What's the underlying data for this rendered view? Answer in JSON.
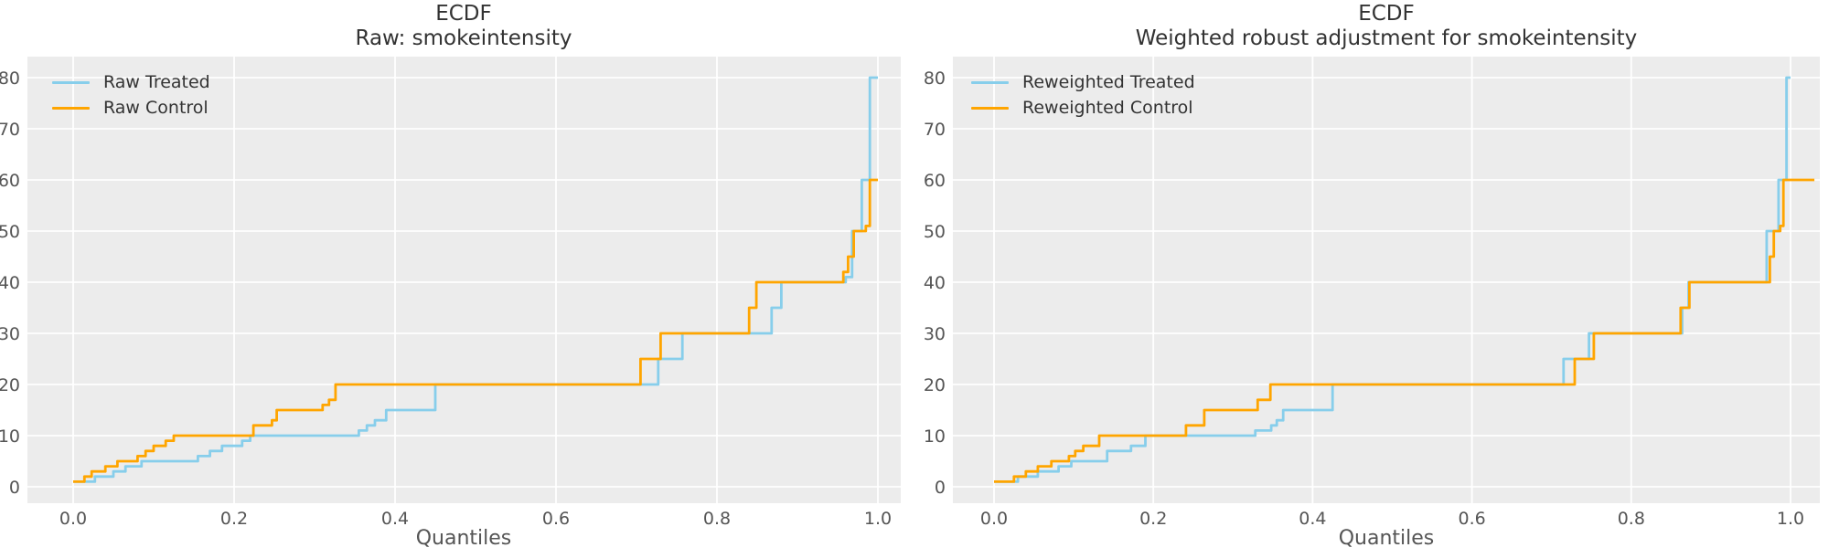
{
  "colors": {
    "treated": "#87CEEB",
    "control": "#FFA500",
    "panel_bg": "#ECECEC",
    "grid": "#FFFFFF",
    "tick_text": "#555555",
    "title_text": "#333333"
  },
  "chart_data": [
    {
      "type": "line",
      "subtype": "step-quantile-ecdf",
      "title_lines": [
        "ECDF",
        "Raw: smokeintensity"
      ],
      "xlabel": "Quantiles",
      "ylabel": "",
      "grid": true,
      "legend_position": "upper left",
      "xlim": [
        -0.057,
        1.028
      ],
      "ylim": [
        -3.2,
        84.1
      ],
      "x_ticks": [
        0.0,
        0.2,
        0.4,
        0.6,
        0.8,
        1.0
      ],
      "x_tick_labels": [
        "0.0",
        "0.2",
        "0.4",
        "0.6",
        "0.8",
        "1.0"
      ],
      "y_ticks": [
        0,
        10,
        20,
        30,
        40,
        50,
        60,
        70,
        80
      ],
      "y_tick_labels": [
        "0",
        "10",
        "20",
        "30",
        "40",
        "50",
        "60",
        "70",
        "80"
      ],
      "series": [
        {
          "name": "Raw Treated",
          "color_key": "treated",
          "points": [
            [
              0.0,
              1
            ],
            [
              0.027,
              2
            ],
            [
              0.05,
              3
            ],
            [
              0.065,
              4
            ],
            [
              0.085,
              5
            ],
            [
              0.155,
              6
            ],
            [
              0.17,
              7
            ],
            [
              0.185,
              8
            ],
            [
              0.21,
              9
            ],
            [
              0.22,
              10
            ],
            [
              0.355,
              11
            ],
            [
              0.365,
              12
            ],
            [
              0.375,
              13
            ],
            [
              0.389,
              15
            ],
            [
              0.45,
              20
            ],
            [
              0.727,
              25
            ],
            [
              0.757,
              30
            ],
            [
              0.868,
              35
            ],
            [
              0.88,
              40
            ],
            [
              0.96,
              41
            ],
            [
              0.968,
              50
            ],
            [
              0.98,
              60
            ],
            [
              0.99,
              80
            ],
            [
              1.0,
              80
            ]
          ]
        },
        {
          "name": "Raw Control",
          "color_key": "control",
          "points": [
            [
              0.0,
              1
            ],
            [
              0.014,
              2
            ],
            [
              0.023,
              3
            ],
            [
              0.04,
              4
            ],
            [
              0.055,
              5
            ],
            [
              0.08,
              6
            ],
            [
              0.09,
              7
            ],
            [
              0.1,
              8
            ],
            [
              0.115,
              9
            ],
            [
              0.125,
              10
            ],
            [
              0.224,
              12
            ],
            [
              0.247,
              13
            ],
            [
              0.253,
              15
            ],
            [
              0.31,
              16
            ],
            [
              0.318,
              17
            ],
            [
              0.326,
              20
            ],
            [
              0.705,
              25
            ],
            [
              0.73,
              30
            ],
            [
              0.84,
              35
            ],
            [
              0.849,
              40
            ],
            [
              0.957,
              42
            ],
            [
              0.963,
              45
            ],
            [
              0.97,
              50
            ],
            [
              0.985,
              51
            ],
            [
              0.99,
              60
            ],
            [
              1.0,
              60
            ]
          ]
        }
      ]
    },
    {
      "type": "line",
      "subtype": "step-quantile-ecdf",
      "title_lines": [
        "ECDF",
        "Weighted robust adjustment for smokeintensity"
      ],
      "xlabel": "Quantiles",
      "ylabel": "",
      "grid": true,
      "legend_position": "upper left",
      "xlim": [
        -0.052,
        1.037
      ],
      "ylim": [
        -3.2,
        84.1
      ],
      "x_ticks": [
        0.0,
        0.2,
        0.4,
        0.6,
        0.8,
        1.0
      ],
      "x_tick_labels": [
        "0.0",
        "0.2",
        "0.4",
        "0.6",
        "0.8",
        "1.0"
      ],
      "y_ticks": [
        0,
        10,
        20,
        30,
        40,
        50,
        60,
        70,
        80
      ],
      "y_tick_labels": [
        "0",
        "10",
        "20",
        "30",
        "40",
        "50",
        "60",
        "70",
        "80"
      ],
      "series": [
        {
          "name": "Reweighted Treated",
          "color_key": "treated",
          "points": [
            [
              0.0,
              1
            ],
            [
              0.03,
              2
            ],
            [
              0.055,
              3
            ],
            [
              0.081,
              4
            ],
            [
              0.097,
              5
            ],
            [
              0.142,
              7
            ],
            [
              0.172,
              8
            ],
            [
              0.19,
              10
            ],
            [
              0.328,
              11
            ],
            [
              0.348,
              12
            ],
            [
              0.355,
              13
            ],
            [
              0.363,
              15
            ],
            [
              0.425,
              20
            ],
            [
              0.715,
              25
            ],
            [
              0.747,
              30
            ],
            [
              0.864,
              35
            ],
            [
              0.872,
              40
            ],
            [
              0.97,
              50
            ],
            [
              0.985,
              60
            ],
            [
              0.995,
              80
            ],
            [
              1.0,
              80
            ]
          ]
        },
        {
          "name": "Reweighted Control",
          "color_key": "control",
          "points": [
            [
              0.0,
              1
            ],
            [
              0.025,
              2
            ],
            [
              0.04,
              3
            ],
            [
              0.055,
              4
            ],
            [
              0.072,
              5
            ],
            [
              0.094,
              6
            ],
            [
              0.102,
              7
            ],
            [
              0.112,
              8
            ],
            [
              0.132,
              10
            ],
            [
              0.241,
              12
            ],
            [
              0.264,
              15
            ],
            [
              0.331,
              17
            ],
            [
              0.347,
              20
            ],
            [
              0.729,
              25
            ],
            [
              0.753,
              30
            ],
            [
              0.862,
              35
            ],
            [
              0.873,
              40
            ],
            [
              0.974,
              45
            ],
            [
              0.979,
              50
            ],
            [
              0.987,
              51
            ],
            [
              0.991,
              60
            ],
            [
              1.03,
              60
            ]
          ]
        }
      ]
    }
  ]
}
